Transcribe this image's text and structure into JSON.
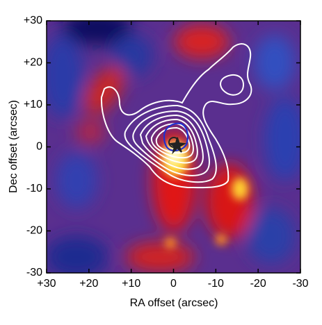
{
  "chart_data": {
    "type": "image",
    "xlabel": "RA offset (arcsec)",
    "ylabel": "Dec offset (arcsec)",
    "xlim": [
      30,
      -30
    ],
    "ylim": [
      -30,
      30
    ],
    "xticks": [
      {
        "value": 30,
        "label": "+30"
      },
      {
        "value": 20,
        "label": "+20"
      },
      {
        "value": 10,
        "label": "+10"
      },
      0,
      -10,
      -20,
      -30
    ],
    "yticks": [
      {
        "value": 30,
        "label": "+30"
      },
      {
        "value": 20,
        "label": "+20"
      },
      {
        "value": 10,
        "label": "+10"
      },
      0,
      -10,
      -20,
      -30
    ]
  }
}
